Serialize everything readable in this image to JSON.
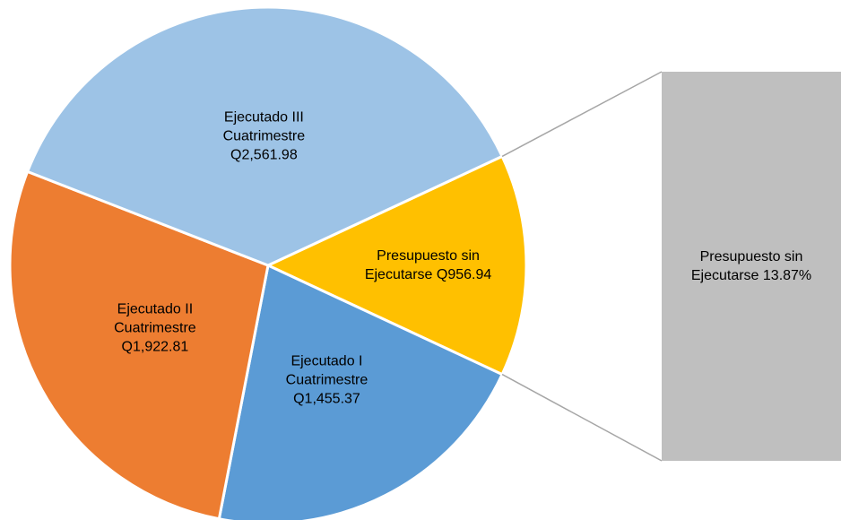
{
  "chart_data": {
    "type": "pie-of-bar",
    "categories": [
      "Presupuesto sin Ejecutarse",
      "Ejecutado I Cuatrimestre",
      "Ejecutado II Cuatrimestre",
      "Ejecutado III Cuatrimestre"
    ],
    "values": [
      956.94,
      1455.37,
      1922.81,
      2561.98
    ],
    "value_labels": [
      "Q956.94",
      "Q1,455.37",
      "Q1,922.81",
      "Q2,561.98"
    ],
    "colors": [
      "#FFC000",
      "#5B9BD5",
      "#ED7D31",
      "#9DC3E6"
    ],
    "bar": {
      "categories": [
        "Presupuesto sin Ejecutarse"
      ],
      "values": [
        13.87
      ],
      "value_labels": [
        "13.87%"
      ],
      "color": "#BFBFBF"
    }
  }
}
